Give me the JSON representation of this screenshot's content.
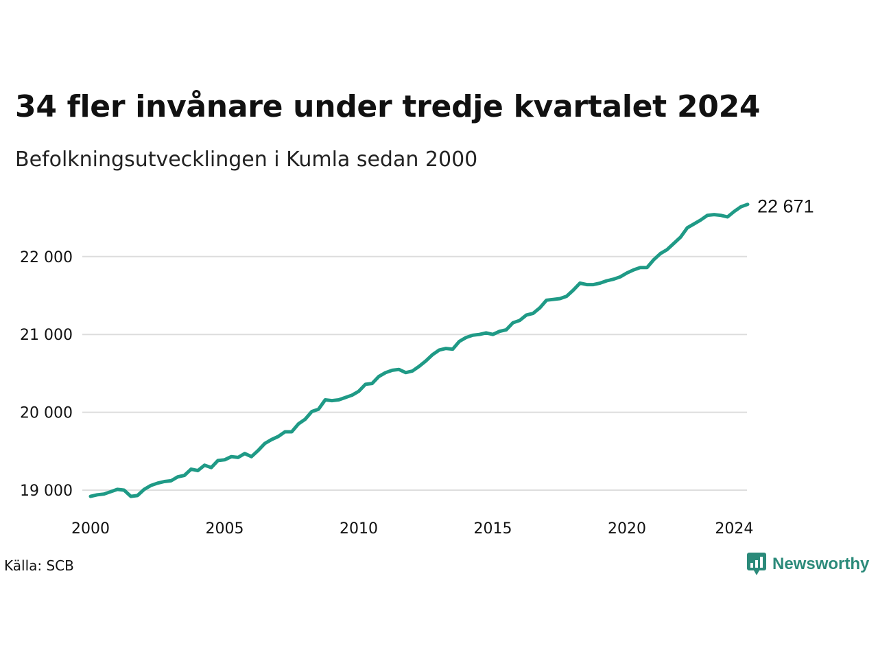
{
  "header": {
    "title": "34 fler invånare under tredje kvartalet 2024",
    "subtitle": "Befolkningsutvecklingen i Kumla sedan 2000"
  },
  "footer": {
    "source": "Källa: SCB",
    "brand": "Newsworthy",
    "brand_color": "#2b8a7a",
    "brand_icon": "bar-chart-speech-bubble-icon"
  },
  "colors": {
    "line": "#1f9a86",
    "grid": "#dddddd",
    "text": "#111111"
  },
  "chart_data": {
    "type": "line",
    "title": "34 fler invånare under tredje kvartalet 2024",
    "subtitle": "Befolkningsutvecklingen i Kumla sedan 2000",
    "xlabel": "",
    "ylabel": "",
    "x_ticks": [
      "2000",
      "2005",
      "2010",
      "2015",
      "2020",
      "2024"
    ],
    "y_ticks": [
      "19 000",
      "20 000",
      "21 000",
      "22 000"
    ],
    "y_tick_values": [
      19000,
      20000,
      21000,
      22000
    ],
    "xlim": [
      2000,
      2025
    ],
    "ylim": [
      18850,
      22700
    ],
    "grid": "horizontal",
    "end_label": "22 671",
    "series": [
      {
        "x": [
          2000.0,
          2000.25,
          2000.5,
          2000.75,
          2001.0,
          2001.25,
          2001.5,
          2001.75,
          2002.0,
          2002.25,
          2002.5,
          2002.75,
          2003.0,
          2003.25,
          2003.5,
          2003.75,
          2004.0,
          2004.25,
          2004.5,
          2004.75,
          2005.0,
          2005.25,
          2005.5,
          2005.75,
          2006.0,
          2006.25,
          2006.5,
          2006.75,
          2007.0,
          2007.25,
          2007.5,
          2007.75,
          2008.0,
          2008.25,
          2008.5,
          2008.75,
          2009.0,
          2009.25,
          2009.5,
          2009.75,
          2010.0,
          2010.25,
          2010.5,
          2010.75,
          2011.0,
          2011.25,
          2011.5,
          2011.75,
          2012.0,
          2012.25,
          2012.5,
          2012.75,
          2013.0,
          2013.25,
          2013.5,
          2013.75,
          2014.0,
          2014.25,
          2014.5,
          2014.75,
          2015.0,
          2015.25,
          2015.5,
          2015.75,
          2016.0,
          2016.25,
          2016.5,
          2016.75,
          2017.0,
          2017.25,
          2017.5,
          2017.75,
          2018.0,
          2018.25,
          2018.5,
          2018.75,
          2019.0,
          2019.25,
          2019.5,
          2019.75,
          2020.0,
          2020.25,
          2020.5,
          2020.75,
          2021.0,
          2021.25,
          2021.5,
          2021.75,
          2022.0,
          2022.25,
          2022.5,
          2022.75,
          2023.0,
          2023.25,
          2023.5,
          2023.75,
          2024.0,
          2024.25,
          2024.5
        ],
        "values": [
          18920,
          18940,
          18950,
          18980,
          19010,
          19000,
          18920,
          18930,
          19010,
          19060,
          19090,
          19110,
          19120,
          19170,
          19190,
          19270,
          19250,
          19320,
          19290,
          19380,
          19390,
          19430,
          19420,
          19470,
          19430,
          19510,
          19600,
          19650,
          19690,
          19750,
          19750,
          19850,
          19910,
          20010,
          20040,
          20160,
          20150,
          20160,
          20190,
          20220,
          20270,
          20360,
          20370,
          20460,
          20510,
          20540,
          20550,
          20510,
          20530,
          20590,
          20660,
          20740,
          20800,
          20820,
          20810,
          20910,
          20960,
          20990,
          21000,
          21020,
          21000,
          21040,
          21060,
          21150,
          21180,
          21250,
          21270,
          21340,
          21440,
          21450,
          21460,
          21490,
          21570,
          21660,
          21640,
          21640,
          21660,
          21690,
          21710,
          21740,
          21790,
          21830,
          21860,
          21860,
          21960,
          22040,
          22090,
          22170,
          22250,
          22370,
          22420,
          22470,
          22530,
          22540,
          22530,
          22510,
          22580,
          22640,
          22671
        ]
      }
    ]
  }
}
